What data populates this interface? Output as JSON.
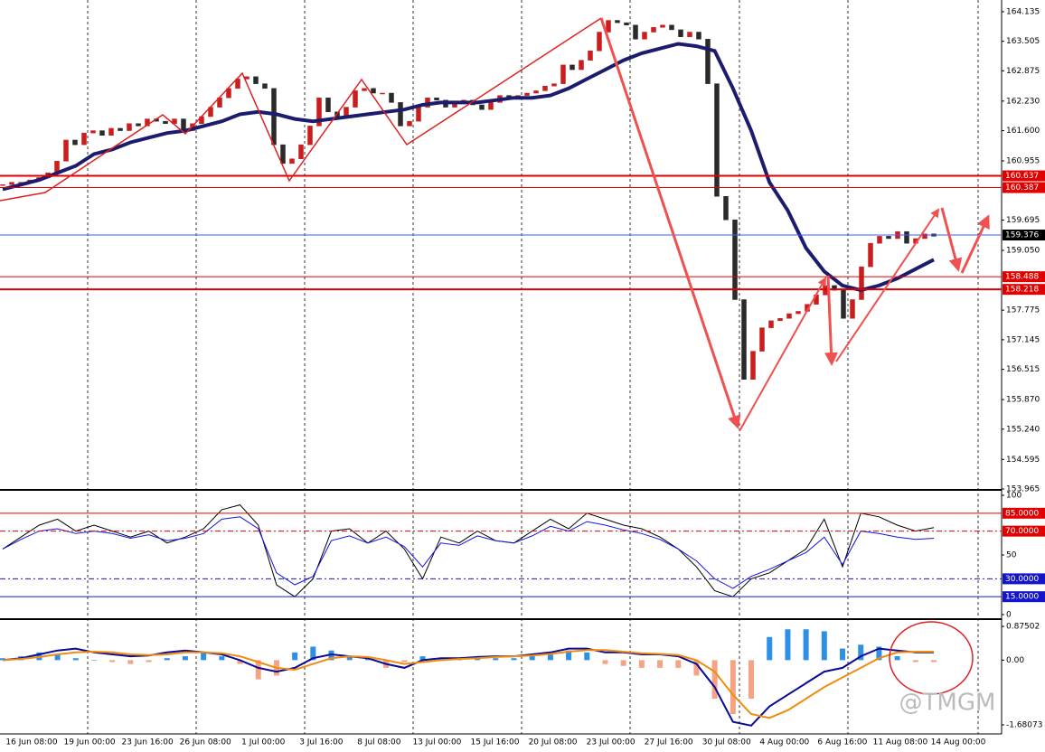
{
  "chart_data": [
    {
      "type": "candlestick",
      "closes": [
        160.45,
        160.5,
        160.5,
        160.55,
        160.6,
        160.7,
        160.95,
        161.4,
        161.3,
        161.55,
        161.6,
        161.5,
        161.65,
        161.6,
        161.75,
        161.7,
        161.85,
        161.8,
        161.75,
        161.85,
        161.6,
        161.75,
        161.9,
        162.1,
        162.3,
        162.5,
        162.7,
        162.75,
        162.6,
        162.5,
        161.3,
        160.9,
        161.0,
        161.3,
        161.7,
        162.3,
        162.0,
        161.9,
        162.1,
        162.45,
        162.5,
        162.4,
        162.4,
        162.2,
        161.7,
        161.8,
        162.1,
        162.3,
        162.25,
        162.1,
        162.2,
        162.25,
        162.15,
        162.05,
        162.2,
        162.35,
        162.3,
        162.35,
        162.4,
        162.45,
        162.55,
        162.6,
        163.0,
        162.9,
        163.1,
        163.3,
        163.7,
        163.95,
        163.9,
        163.85,
        163.55,
        163.7,
        163.8,
        163.85,
        163.75,
        163.6,
        163.7,
        163.55,
        162.6,
        160.2,
        159.7,
        158.0,
        156.3,
        156.9,
        157.4,
        157.55,
        157.6,
        157.7,
        157.75,
        157.9,
        158.1,
        158.3,
        158.2,
        157.6,
        158.0,
        158.7,
        159.2,
        159.35,
        159.3,
        159.45,
        159.2,
        159.3,
        159.4,
        159.35
      ],
      "candle_colors": {
        "up": "#c81e1e",
        "down": "#2a2a2a"
      },
      "ma": {
        "color": "#1c1c6e",
        "values": [
          160.35,
          160.45,
          160.55,
          160.7,
          160.85,
          161.1,
          161.2,
          161.35,
          161.45,
          161.55,
          161.6,
          161.7,
          161.8,
          161.95,
          162.0,
          161.95,
          161.85,
          161.8,
          161.85,
          161.9,
          161.95,
          162.0,
          162.05,
          162.15,
          162.2,
          162.2,
          162.2,
          162.25,
          162.3,
          162.3,
          162.35,
          162.5,
          162.7,
          162.9,
          163.1,
          163.25,
          163.35,
          163.45,
          163.4,
          163.3,
          162.5,
          161.6,
          160.5,
          159.9,
          159.1,
          158.6,
          158.3,
          158.2,
          158.3,
          158.45,
          158.65,
          158.85
        ]
      },
      "ylim": [
        153.965,
        164.384
      ],
      "yticks": [
        164.135,
        163.505,
        162.875,
        {
          "value": 162.23,
          "label": "162.230"
        },
        {
          "value": 161.6,
          "label": "161.600"
        },
        160.955,
        159.695,
        {
          "value": 159.05,
          "label": "159.050"
        },
        157.775,
        157.145,
        156.515,
        {
          "value": 155.87,
          "label": "155.870"
        },
        {
          "value": 155.24,
          "label": "155.240"
        },
        154.595,
        153.965
      ],
      "levels": [
        {
          "value": 160.637,
          "color": "#e00000",
          "width": 2
        },
        {
          "value": 160.387,
          "color": "#e00000",
          "width": 1
        },
        {
          "value": 159.376,
          "color": "#3060ff",
          "width": 1,
          "box": "#000000"
        },
        {
          "value": 158.488,
          "color": "#e00000",
          "width": 1
        },
        {
          "value": 158.218,
          "color": "#e00000",
          "width": 2
        }
      ],
      "x_labels": [
        "16 Jun 08:00",
        "19 Jun 00:00",
        "23 Jun 16:00",
        "26 Jun 08:00",
        "1 Jul 00:00",
        "3 Jul 16:00",
        "8 Jul 08:00",
        "13 Jul 00:00",
        "15 Jul 16:00",
        "20 Jul 08:00",
        "23 Jul 00:00",
        "27 Jul 16:00",
        "30 Jul 08:00",
        "4 Aug 00:00",
        "6 Aug 16:00",
        "11 Aug 08:00",
        "14 Aug 00:00"
      ]
    },
    {
      "type": "line",
      "series": [
        {
          "color": "#000000",
          "values": [
            55,
            65,
            75,
            80,
            70,
            75,
            70,
            65,
            70,
            60,
            65,
            72,
            88,
            92,
            75,
            25,
            15,
            30,
            70,
            72,
            60,
            70,
            55,
            30,
            65,
            60,
            70,
            62,
            60,
            70,
            80,
            72,
            85,
            80,
            75,
            72,
            65,
            55,
            40,
            20,
            15,
            30,
            35,
            45,
            55,
            80,
            40,
            85,
            82,
            75,
            70,
            73
          ]
        },
        {
          "color": "#1414e0",
          "values": [
            55,
            63,
            70,
            72,
            68,
            70,
            68,
            64,
            67,
            62,
            64,
            68,
            80,
            82,
            72,
            35,
            25,
            32,
            62,
            66,
            60,
            65,
            57,
            40,
            60,
            58,
            66,
            62,
            60,
            66,
            74,
            70,
            78,
            75,
            71,
            68,
            63,
            55,
            45,
            30,
            22,
            32,
            38,
            45,
            52,
            65,
            42,
            70,
            68,
            65,
            63,
            64
          ]
        }
      ],
      "ylim": [
        -2.3,
        102.3
      ],
      "yticks": [
        100,
        50,
        0
      ],
      "levels": [
        {
          "value": 85,
          "label": "85.0000",
          "color": "#e00000",
          "width": 1
        },
        {
          "value": 70,
          "label": "70.0000",
          "color": "#e00000",
          "width": 1,
          "dash": "6 3 2 3"
        },
        {
          "value": 30,
          "label": "30.0000",
          "color": "#1414c8",
          "width": 1,
          "dash": "6 3 2 3"
        },
        {
          "value": 15,
          "label": "15.0000",
          "color": "#1414c8",
          "width": 1
        }
      ]
    },
    {
      "type": "macd",
      "histogram": {
        "pos_color": "#2d8fe6",
        "neg_color": "#f4a384",
        "values": [
          0.05,
          0.1,
          0.2,
          0.15,
          0.05,
          0.0,
          -0.05,
          -0.1,
          -0.05,
          0.05,
          0.1,
          0.2,
          0.1,
          -0.1,
          -0.5,
          -0.4,
          0.2,
          0.35,
          0.25,
          0.1,
          0.05,
          -0.2,
          -0.05,
          0.1,
          0.05,
          0.05,
          0.1,
          0.05,
          0.05,
          0.1,
          0.15,
          0.25,
          0.2,
          -0.1,
          -0.15,
          -0.2,
          -0.2,
          -0.2,
          -0.4,
          -1.0,
          -1.4,
          -1.0,
          0.6,
          0.8,
          0.8,
          0.75,
          0.3,
          0.4,
          0.35,
          0.1,
          -0.05,
          -0.05
        ]
      },
      "series": [
        {
          "color": "#0a0a96",
          "values": [
            0.0,
            0.05,
            0.15,
            0.25,
            0.3,
            0.2,
            0.15,
            0.1,
            0.12,
            0.2,
            0.25,
            0.2,
            0.15,
            0.0,
            -0.2,
            -0.3,
            -0.2,
            0.05,
            0.15,
            0.1,
            0.05,
            -0.1,
            -0.2,
            0.0,
            0.05,
            0.05,
            0.08,
            0.1,
            0.1,
            0.15,
            0.2,
            0.3,
            0.3,
            0.2,
            0.2,
            0.15,
            0.15,
            0.1,
            -0.1,
            -0.7,
            -1.6,
            -1.7,
            -1.2,
            -0.9,
            -0.6,
            -0.3,
            -0.2,
            0.1,
            0.3,
            0.25,
            0.2,
            0.2
          ]
        },
        {
          "color": "#f08c10",
          "values": [
            0.0,
            0.03,
            0.08,
            0.15,
            0.2,
            0.22,
            0.2,
            0.15,
            0.13,
            0.15,
            0.2,
            0.2,
            0.18,
            0.1,
            -0.05,
            -0.2,
            -0.25,
            -0.1,
            0.05,
            0.1,
            0.08,
            0.0,
            -0.1,
            -0.05,
            0.0,
            0.03,
            0.05,
            0.08,
            0.1,
            0.12,
            0.16,
            0.22,
            0.26,
            0.26,
            0.22,
            0.18,
            0.16,
            0.13,
            0.0,
            -0.3,
            -0.9,
            -1.4,
            -1.5,
            -1.3,
            -1.0,
            -0.7,
            -0.45,
            -0.2,
            0.05,
            0.2,
            0.22,
            0.22
          ]
        }
      ],
      "ylim": [
        -1.915,
        1.017
      ],
      "yticks": [
        0.87502,
        {
          "value": 0,
          "label": "0.00"
        },
        -1.68073
      ]
    }
  ],
  "watermark": "@TMGM"
}
